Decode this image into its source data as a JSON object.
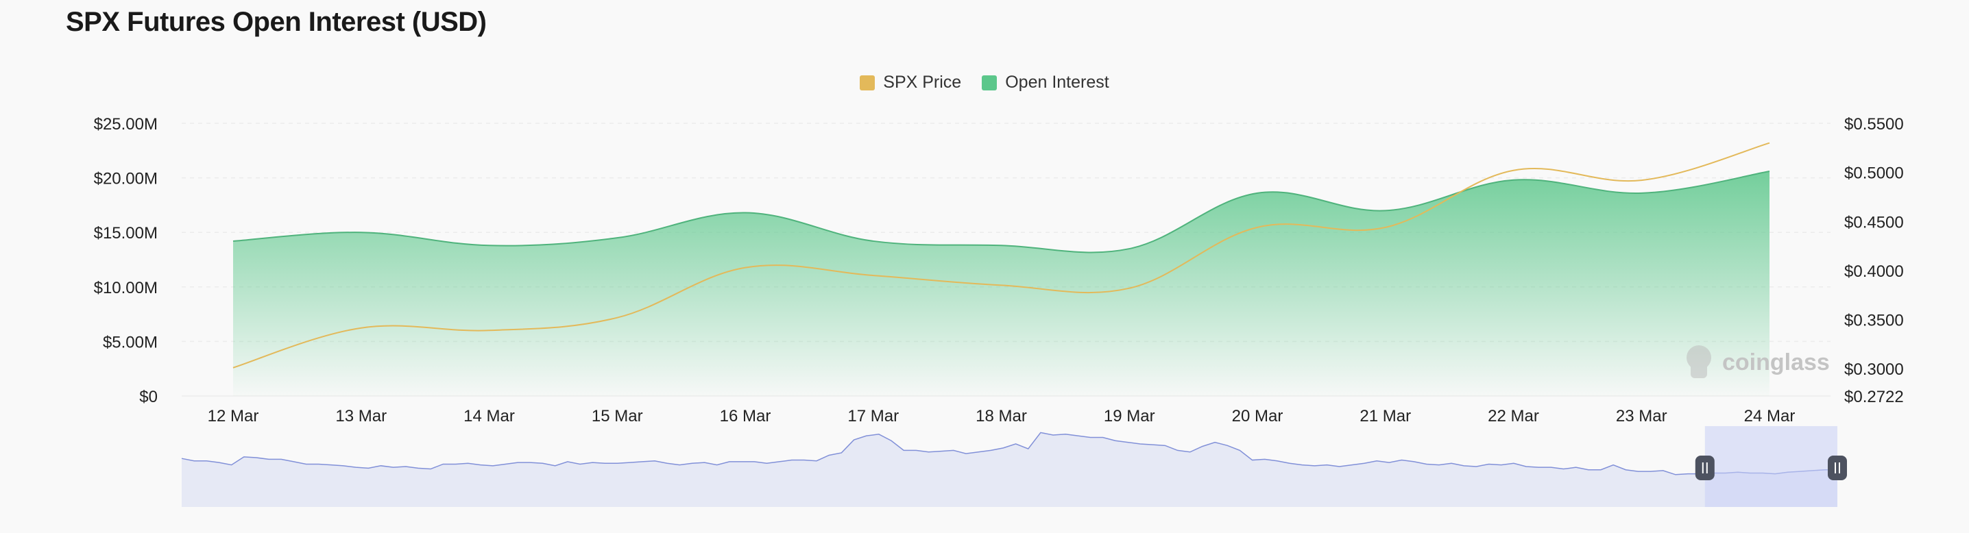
{
  "title": "SPX Futures Open Interest (USD)",
  "legend": {
    "price": "SPX Price",
    "oi": "Open Interest"
  },
  "colors": {
    "price": "#e3b95a",
    "oi": "#5cc78b",
    "oi_line": "#4fb37c",
    "navigator": "#8190d8",
    "navigator_fill": "#e6e9f5"
  },
  "watermark": "coinglass",
  "chart_data": {
    "type": "area",
    "x": [
      "12 Mar",
      "13 Mar",
      "14 Mar",
      "15 Mar",
      "16 Mar",
      "17 Mar",
      "18 Mar",
      "19 Mar",
      "20 Mar",
      "21 Mar",
      "22 Mar",
      "23 Mar",
      "24 Mar"
    ],
    "series": [
      {
        "name": "Open Interest",
        "axis": "left",
        "values": [
          14.2,
          15.0,
          13.8,
          14.5,
          16.8,
          14.2,
          13.8,
          13.5,
          18.6,
          17.0,
          19.8,
          18.6,
          20.6
        ]
      },
      {
        "name": "SPX Price",
        "axis": "right",
        "values": [
          0.301,
          0.3415,
          0.339,
          0.352,
          0.403,
          0.395,
          0.385,
          0.382,
          0.444,
          0.444,
          0.502,
          0.492,
          0.53
        ]
      }
    ],
    "y_left": {
      "ticks": [
        "$25.00M",
        "$20.00M",
        "$15.00M",
        "$10.00M",
        "$5.00M",
        "$0"
      ],
      "tick_values": [
        25,
        20,
        15,
        10,
        5,
        0
      ],
      "range": [
        0,
        25
      ]
    },
    "y_right": {
      "ticks": [
        "$0.5500",
        "$0.5000",
        "$0.4500",
        "$0.4000",
        "$0.3500",
        "$0.3000",
        "$0.2722"
      ],
      "tick_values": [
        0.55,
        0.5,
        0.45,
        0.4,
        0.35,
        0.3,
        0.2722
      ],
      "range": [
        0.2722,
        0.55
      ]
    },
    "grid": true,
    "legend_position": "top-center",
    "navigator": {
      "values": [
        60,
        57,
        57,
        55,
        52,
        62,
        61,
        59,
        59,
        56,
        53,
        53,
        52,
        51,
        49,
        48,
        51,
        49,
        50,
        48,
        47,
        53,
        53,
        54,
        52,
        51,
        53,
        55,
        55,
        54,
        51,
        56,
        53,
        55,
        54,
        54,
        55,
        56,
        57,
        54,
        52,
        54,
        55,
        52,
        56,
        56,
        56,
        54,
        56,
        58,
        58,
        57,
        64,
        67,
        83,
        88,
        90,
        82,
        70,
        70,
        68,
        69,
        70,
        66,
        68,
        70,
        73,
        78,
        72,
        92,
        89,
        90,
        88,
        86,
        86,
        82,
        80,
        78,
        77,
        76,
        70,
        68,
        75,
        80,
        76,
        70,
        58,
        59,
        57,
        54,
        52,
        51,
        52,
        50,
        52,
        54,
        57,
        55,
        58,
        56,
        53,
        52,
        54,
        51,
        50,
        53,
        52,
        54,
        50,
        49,
        49,
        47,
        49,
        46,
        46,
        52,
        46,
        44,
        44,
        45,
        40,
        41,
        41,
        42,
        42,
        43,
        42,
        42,
        41,
        43,
        44,
        45,
        46,
        46
      ],
      "min": 0,
      "max": 100,
      "selected_start": 0.92,
      "selected_end": 1.0
    }
  }
}
